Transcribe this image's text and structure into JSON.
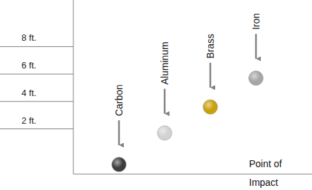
{
  "chart_data": {
    "type": "scatter",
    "categories": [
      "Carbon",
      "Aluminum",
      "Brass",
      "Iron"
    ],
    "values": [
      -0.6,
      1.7,
      3.6,
      5.7
    ],
    "colors": [
      "#3d3d3d",
      "#d2d2d2",
      "#c9a10a",
      "#a6a6a6"
    ],
    "marker": "circle",
    "ylim": [
      -1.3,
      11.4
    ],
    "yticks": [
      {
        "value": 2,
        "label": "2 ft."
      },
      {
        "value": 4,
        "label": "4 ft."
      },
      {
        "value": 6,
        "label": "6 ft."
      },
      {
        "value": 8,
        "label": "8 ft."
      }
    ],
    "annotation": [
      "Point of",
      "Impact"
    ]
  }
}
